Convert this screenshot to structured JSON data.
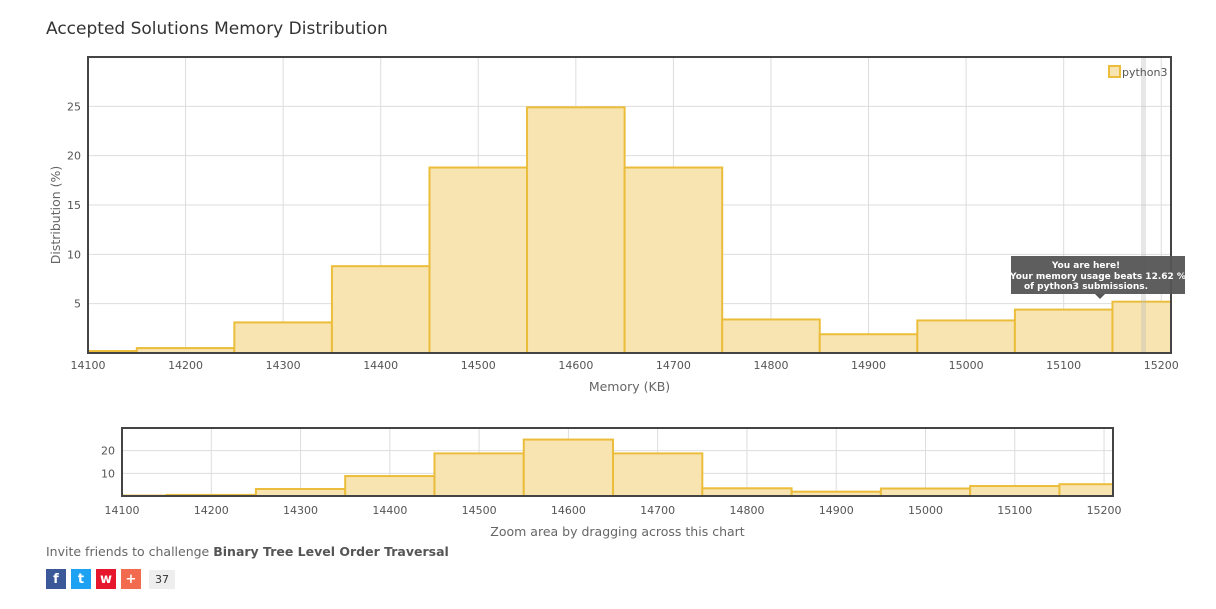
{
  "title": "Accepted Solutions Memory Distribution",
  "colors": {
    "bar_fill": "#f7e4b1",
    "bar_stroke": "#ebbd3b",
    "tooltip_bg": "#555555",
    "grid": "#dddddd",
    "border": "#444444"
  },
  "chart_data": [
    {
      "type": "bar",
      "series": [
        {
          "name": "python3",
          "x": [
            14100,
            14200,
            14300,
            14400,
            14500,
            14600,
            14700,
            14800,
            14900,
            15000,
            15100,
            15200
          ],
          "values": [
            0.2,
            0.5,
            3.1,
            8.8,
            18.8,
            24.9,
            18.8,
            3.4,
            1.9,
            3.3,
            4.4,
            5.2
          ]
        }
      ],
      "xlabel": "Memory (KB)",
      "ylabel": "Distribution (%)",
      "xticks": [
        14100,
        14200,
        14300,
        14400,
        14500,
        14600,
        14700,
        14800,
        14900,
        15000,
        15100,
        15200
      ],
      "yticks": [
        5,
        10,
        15,
        20,
        25
      ],
      "xlim": [
        14100,
        15210
      ],
      "ylim": [
        0,
        30
      ],
      "grid": true,
      "legend": "top-right",
      "tooltip": {
        "line1": "You are here!",
        "line2": "Your memory usage beats 12.62 %",
        "line3": "of python3 submissions."
      }
    },
    {
      "type": "bar",
      "series": [
        {
          "name": "python3",
          "x": [
            14100,
            14200,
            14300,
            14400,
            14500,
            14600,
            14700,
            14800,
            14900,
            15000,
            15100,
            15200
          ],
          "values": [
            0.2,
            0.5,
            3.1,
            8.8,
            18.8,
            24.9,
            18.8,
            3.4,
            1.9,
            3.3,
            4.4,
            5.2
          ]
        }
      ],
      "xlabel": "Zoom area by dragging across this chart",
      "xticks": [
        14100,
        14200,
        14300,
        14400,
        14500,
        14600,
        14700,
        14800,
        14900,
        15000,
        15100,
        15200
      ],
      "yticks": [
        10,
        20
      ],
      "xlim": [
        14100,
        15210
      ],
      "ylim": [
        0,
        30
      ],
      "grid": true
    }
  ],
  "invite": {
    "prefix": "Invite friends to challenge ",
    "problem": "Binary Tree Level Order Traversal"
  },
  "social": {
    "facebook": "f",
    "twitter": "t",
    "weibo": "w",
    "more": "+",
    "share_count": "37"
  }
}
